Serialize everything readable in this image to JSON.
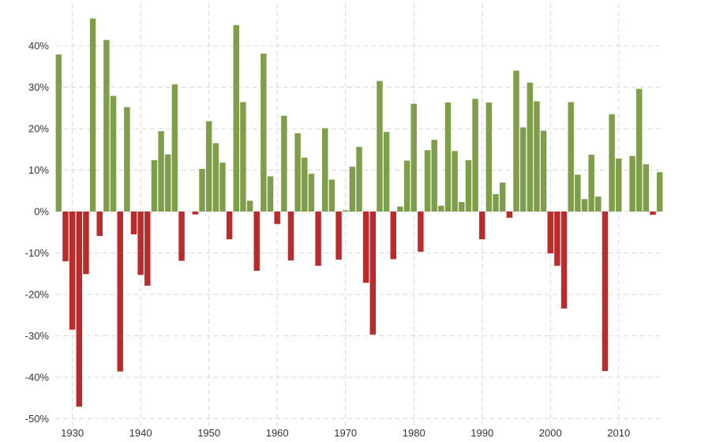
{
  "chart_data": {
    "type": "bar",
    "title": "",
    "xlabel": "",
    "ylabel": "",
    "x_ticks": [
      "1930",
      "1940",
      "1950",
      "1960",
      "1970",
      "1980",
      "1990",
      "2000",
      "2010"
    ],
    "y_ticks": [
      {
        "value": 40,
        "label": "40%"
      },
      {
        "value": 30,
        "label": "30%"
      },
      {
        "value": 20,
        "label": "20%"
      },
      {
        "value": 10,
        "label": "10%"
      },
      {
        "value": 0,
        "label": "0%"
      },
      {
        "value": -10,
        "label": "-10%"
      },
      {
        "value": -20,
        "label": "-20%"
      },
      {
        "value": -30,
        "label": "-30%"
      },
      {
        "value": -40,
        "label": "-40%"
      },
      {
        "value": -50,
        "label": "-50%"
      }
    ],
    "xlim": [
      1927.5,
      2016.5
    ],
    "ylim": [
      -50,
      50
    ],
    "grid": true,
    "colors": {
      "positive": "#7f9e4a",
      "negative": "#bd2a2a",
      "grid": "#d9d9d9",
      "text": "#333333"
    },
    "years": [
      1928,
      1929,
      1930,
      1931,
      1932,
      1933,
      1934,
      1935,
      1936,
      1937,
      1938,
      1939,
      1940,
      1941,
      1942,
      1943,
      1944,
      1945,
      1946,
      1947,
      1948,
      1949,
      1950,
      1951,
      1952,
      1953,
      1954,
      1955,
      1956,
      1957,
      1958,
      1959,
      1960,
      1961,
      1962,
      1963,
      1964,
      1965,
      1966,
      1967,
      1968,
      1969,
      1970,
      1971,
      1972,
      1973,
      1974,
      1975,
      1976,
      1977,
      1978,
      1979,
      1980,
      1981,
      1982,
      1983,
      1984,
      1985,
      1986,
      1987,
      1988,
      1989,
      1990,
      1991,
      1992,
      1993,
      1994,
      1995,
      1996,
      1997,
      1998,
      1999,
      2000,
      2001,
      2002,
      2003,
      2004,
      2005,
      2006,
      2007,
      2008,
      2009,
      2010,
      2011,
      2012,
      2013,
      2014,
      2015,
      2016
    ],
    "values": [
      37.9,
      -12.0,
      -28.5,
      -47.1,
      -15.1,
      46.6,
      -5.9,
      41.4,
      27.9,
      -38.6,
      25.2,
      -5.5,
      -15.3,
      -17.9,
      12.4,
      19.4,
      13.8,
      30.7,
      -11.9,
      0.0,
      -0.7,
      10.3,
      21.8,
      16.5,
      11.8,
      -6.7,
      45.0,
      26.4,
      2.6,
      -14.3,
      38.1,
      8.5,
      -3.0,
      23.1,
      -11.8,
      18.9,
      13.0,
      9.1,
      -13.1,
      20.1,
      7.7,
      -11.6,
      0.3,
      10.8,
      15.6,
      -17.2,
      -29.7,
      31.5,
      19.2,
      -11.5,
      1.2,
      12.3,
      26.0,
      -9.7,
      14.8,
      17.3,
      1.4,
      26.3,
      14.6,
      2.3,
      12.4,
      27.2,
      -6.7,
      26.3,
      4.2,
      7.0,
      -1.5,
      34.0,
      20.3,
      31.1,
      26.6,
      19.5,
      -10.1,
      -13.1,
      -23.4,
      26.4,
      8.9,
      3.0,
      13.7,
      3.6,
      -38.5,
      23.5,
      12.8,
      0.0,
      13.4,
      29.6,
      11.4,
      -0.8,
      9.5
    ]
  }
}
